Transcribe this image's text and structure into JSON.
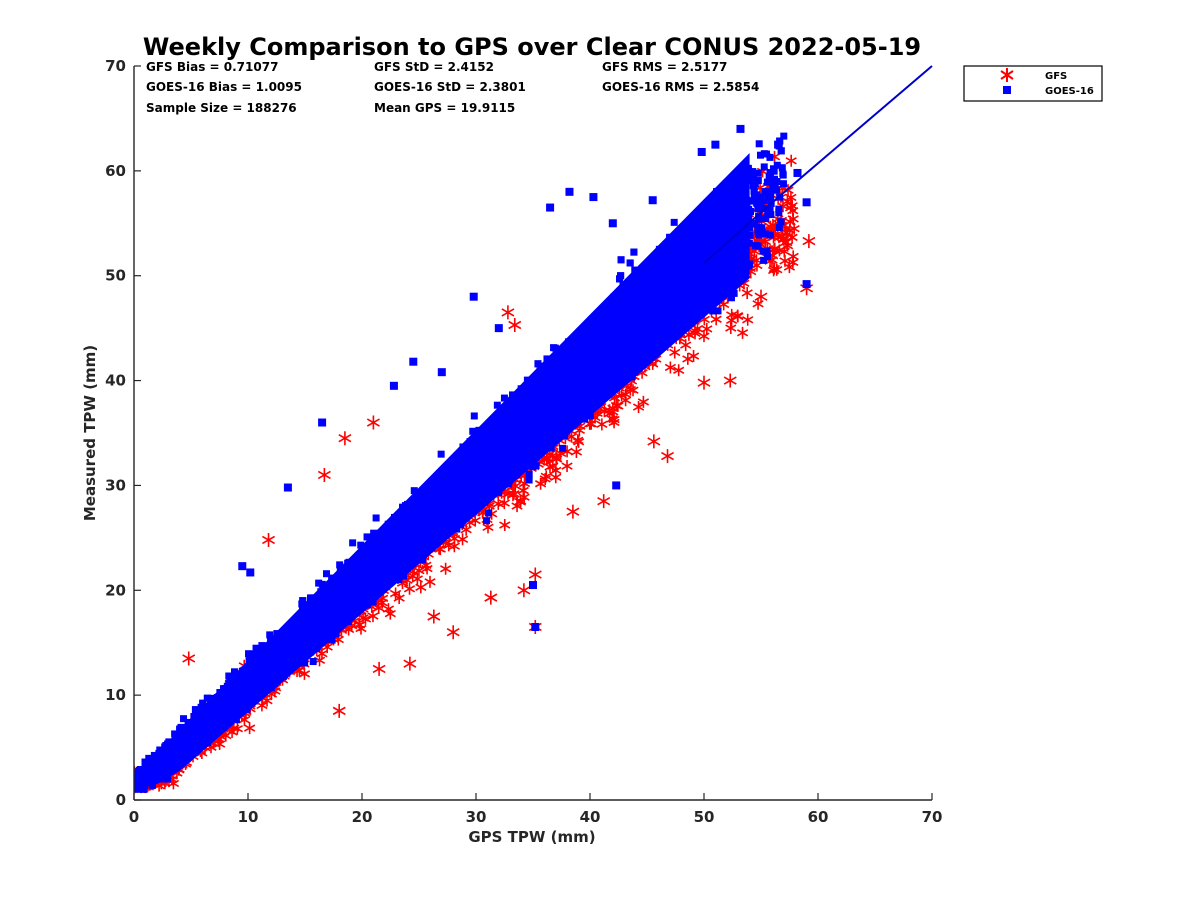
{
  "chart_data": {
    "type": "scatter",
    "title": "Weekly Comparison to GPS over Clear CONUS 2022-05-19",
    "xlabel": "GPS TPW (mm)",
    "ylabel": "Measured TPW (mm)",
    "xlim": [
      0,
      70
    ],
    "ylim": [
      0,
      70
    ],
    "xticks": [
      "0",
      "10",
      "20",
      "30",
      "40",
      "50",
      "60",
      "70"
    ],
    "yticks": [
      "0",
      "10",
      "20",
      "30",
      "40",
      "50",
      "60",
      "70"
    ],
    "grid": false,
    "legend_position": "outside-top-right",
    "stats": {
      "gfs_bias": "GFS Bias = 0.71077",
      "gfs_std": "GFS StD = 2.4152",
      "gfs_rms": "GFS RMS = 2.5177",
      "goes_bias": "GOES-16 Bias = 1.0095",
      "goes_std": "GOES-16 StD = 2.3801",
      "goes_rms": "GOES-16 RMS = 2.5854",
      "sample_size": "Sample Size = 188276",
      "mean_gps": "Mean GPS = 19.9115"
    },
    "series": [
      {
        "name": "GFS",
        "marker": "asterisk",
        "color": "#ff0000",
        "band": {
          "slope": 0.97,
          "intercept": 0.7,
          "spread_low": 6.0,
          "spread_high": 5.0,
          "x_range": [
            0,
            58
          ]
        },
        "outliers": [
          [
            35.2,
            16.5
          ],
          [
            34.2,
            20.0
          ],
          [
            35.2,
            21.5
          ],
          [
            31.3,
            19.3
          ],
          [
            24.2,
            13.0
          ],
          [
            21.0,
            36.0
          ],
          [
            18.5,
            34.5
          ],
          [
            16.7,
            31.0
          ],
          [
            4.8,
            13.5
          ],
          [
            11.8,
            24.8
          ],
          [
            52.3,
            40.0
          ],
          [
            50.0,
            39.8
          ],
          [
            59.0,
            48.8
          ],
          [
            59.2,
            53.3
          ],
          [
            57.2,
            53.2
          ],
          [
            55.0,
            48.0
          ],
          [
            46.8,
            32.8
          ],
          [
            45.6,
            34.2
          ],
          [
            38.5,
            27.5
          ],
          [
            41.2,
            28.5
          ],
          [
            32.8,
            46.5
          ],
          [
            33.4,
            45.3
          ],
          [
            18.0,
            8.5
          ],
          [
            21.5,
            12.5
          ],
          [
            26.3,
            17.5
          ],
          [
            28.0,
            16.0
          ]
        ]
      },
      {
        "name": "GOES-16",
        "marker": "square",
        "color": "#0000ff",
        "band": {
          "slope": 1.02,
          "intercept": 1.0,
          "spread_low": 5.0,
          "spread_high": 6.5,
          "x_range": [
            0,
            57
          ]
        },
        "outliers": [
          [
            53.2,
            64.0
          ],
          [
            51.0,
            62.5
          ],
          [
            49.8,
            61.8
          ],
          [
            42.0,
            55.0
          ],
          [
            38.2,
            58.0
          ],
          [
            40.3,
            57.5
          ],
          [
            36.5,
            56.5
          ],
          [
            27.0,
            40.8
          ],
          [
            24.5,
            41.8
          ],
          [
            16.5,
            36.0
          ],
          [
            13.5,
            29.8
          ],
          [
            9.5,
            22.3
          ],
          [
            42.3,
            30.0
          ],
          [
            35.2,
            16.5
          ],
          [
            59.0,
            57.0
          ],
          [
            58.2,
            59.8
          ],
          [
            59.0,
            49.2
          ],
          [
            29.8,
            48.0
          ],
          [
            22.8,
            39.5
          ],
          [
            56.5,
            62.5
          ],
          [
            45.5,
            57.2
          ],
          [
            35.0,
            20.5
          ],
          [
            32.0,
            45.0
          ],
          [
            10.2,
            21.7
          ]
        ]
      }
    ],
    "reference_line": {
      "name": "1:1",
      "color": "#0000cc",
      "x": [
        50,
        70
      ],
      "y": [
        50,
        70
      ]
    },
    "legend": [
      "GFS",
      "GOES-16"
    ]
  }
}
